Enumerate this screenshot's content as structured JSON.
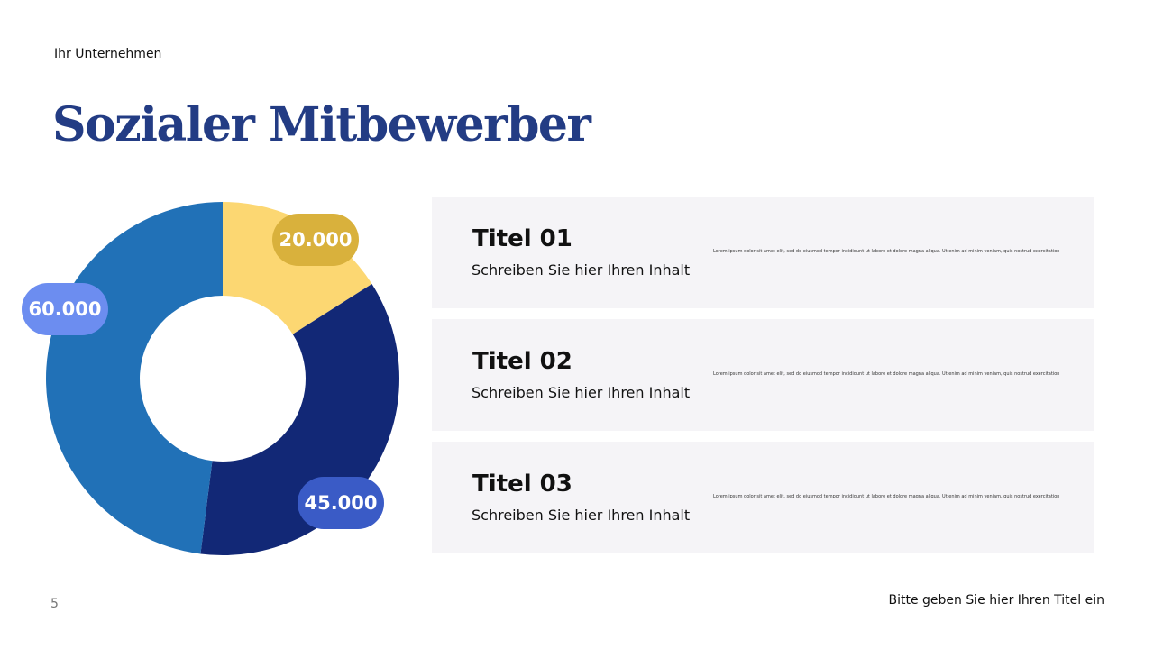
{
  "header": {
    "company": "Ihr Unternehmen",
    "title": "Sozialer Mitbewerber"
  },
  "chart_data": {
    "type": "pie",
    "donut": true,
    "slices": [
      {
        "label": "20.000",
        "value": 20000,
        "color": "#fcd772"
      },
      {
        "label": "45.000",
        "value": 45000,
        "color": "#122876"
      },
      {
        "label": "60.000",
        "value": 60000,
        "color": "#2171b7"
      }
    ],
    "label_colors": [
      "#d9b13c",
      "#3a5bc6",
      "#6c8df0"
    ]
  },
  "cards": [
    {
      "title": "Titel 01",
      "subtitle": "Schreiben Sie hier Ihren Inhalt",
      "body": "Lorem ipsum dolor sit amet elit, sed do eiusmod tempor incididunt ut labore et dolore magna aliqua. Ut enim ad minim veniam, quis nostrud exercitation"
    },
    {
      "title": "Titel 02",
      "subtitle": "Schreiben Sie hier Ihren Inhalt",
      "body": "Lorem ipsum dolor sit amet elit, sed do eiusmod tempor incididunt ut labore et dolore magna aliqua. Ut enim ad minim veniam, quis nostrud exercitation"
    },
    {
      "title": "Titel 03",
      "subtitle": "Schreiben Sie hier Ihren Inhalt",
      "body": "Lorem ipsum dolor sit amet elit, sed do eiusmod tempor incididunt ut labore et dolore magna aliqua. Ut enim ad minim veniam, quis nostrud exercitation"
    }
  ],
  "footer": {
    "page_number": "5",
    "title": "Bitte geben Sie hier Ihren Titel ein"
  }
}
